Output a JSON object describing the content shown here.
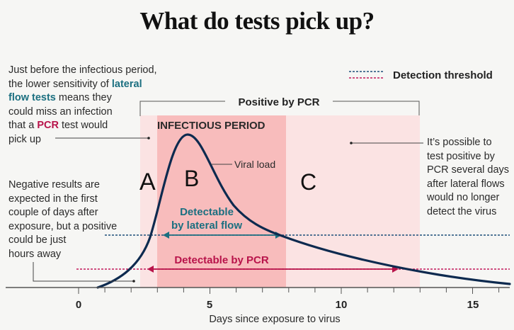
{
  "title": "What do tests pick up?",
  "legend": {
    "label": "Detection threshold",
    "colors": {
      "lateral_flow": "#1d4f7a",
      "pcr": "#c2185b"
    }
  },
  "annotations": {
    "before_infectious": {
      "l1": "Just before the infectious period,",
      "l2a": "the lower sensitivity of ",
      "l2b": "lateral",
      "l3a": "flow tests",
      "l3b": " means they",
      "l4": "could miss an infection",
      "l5a": "that a ",
      "l5b": "PCR",
      "l5c": " test would",
      "l6": "pick up"
    },
    "negative": {
      "l1": "Negative results are",
      "l2": "expected in the first",
      "l3": "couple of days after",
      "l4": "exposure, but a positive",
      "l5": "could be just",
      "l6": "hours away"
    },
    "after": {
      "l1": "It’s possible to",
      "l2": "test positive by",
      "l3": "PCR several days",
      "l4": "after lateral flows",
      "l5": "would no longer",
      "l6": "detect the virus"
    }
  },
  "labels": {
    "positive_by_pcr": "Positive by PCR",
    "infectious_period": "INFECTIOUS PERIOD",
    "viral_load": "Viral load",
    "lateral_l1": "Detectable",
    "lateral_l2": "by lateral flow",
    "pcr": "Detectable by PCR",
    "region_a": "A",
    "region_b": "B",
    "region_c": "C"
  },
  "axis": {
    "label": "Days since exposure to virus",
    "ticks": [
      "0",
      "5",
      "10",
      "15"
    ]
  },
  "regions": {
    "positive_by_pcr_days": [
      2.3,
      13
    ],
    "infectious_period_days": [
      3,
      7.9
    ]
  },
  "colors": {
    "curve": "#0d2a4f",
    "teal": "#1b6f80",
    "crimson": "#b8134a",
    "light_pink": "#fbe3e3",
    "dark_pink": "#f8bcbc"
  }
}
